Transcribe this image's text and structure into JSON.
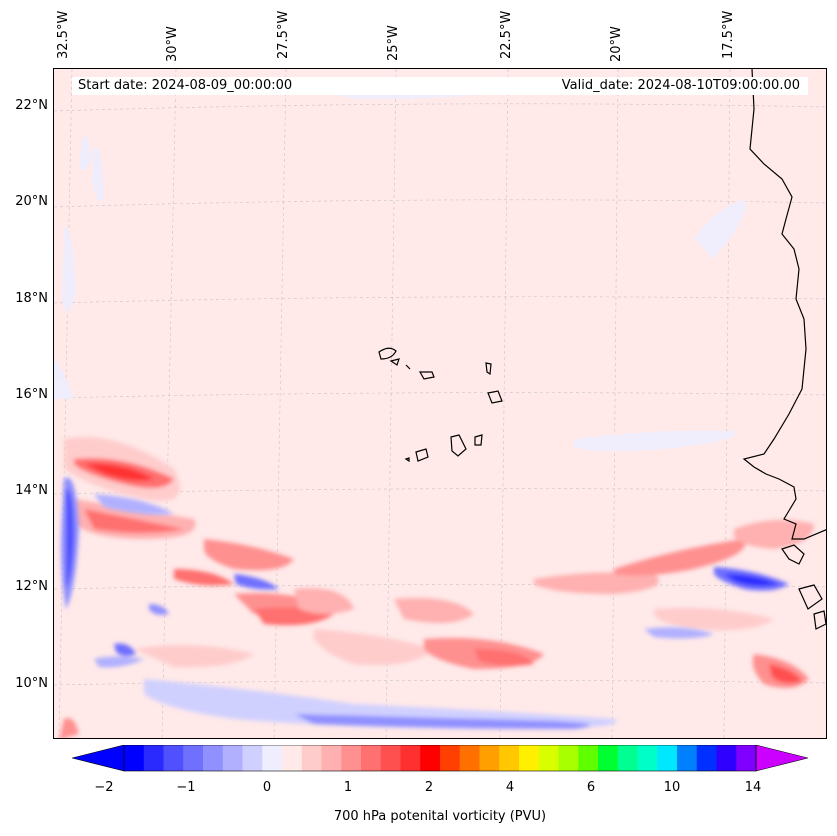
{
  "map": {
    "start_date": "Start date: 2024-08-09_00:00:00",
    "valid_date": "Valid_date: 2024-08-10T09:00:00.00",
    "longitude_labels": [
      "32.5°W",
      "30°W",
      "27.5°W",
      "25°W",
      "22.5°W",
      "20°W",
      "17.5°W"
    ],
    "latitude_labels": [
      "22°N",
      "20°N",
      "18°N",
      "16°N",
      "14°N",
      "12°N",
      "10°N"
    ],
    "background_color": "#ffe9e9"
  },
  "colorbar": {
    "label": "700 hPa potenital vorticity (PVU)",
    "tick_labels": [
      "−2",
      "−1",
      "0",
      "1",
      "2",
      "4",
      "6",
      "10",
      "14"
    ],
    "colors": [
      "#0000ff",
      "#2a2aff",
      "#5050ff",
      "#7070ff",
      "#9090ff",
      "#b0b0ff",
      "#d0d0ff",
      "#eeeeff",
      "#ffe9e9",
      "#ffcccc",
      "#ffb0b0",
      "#ff9090",
      "#ff7070",
      "#ff5050",
      "#ff3030",
      "#ff0000",
      "#ff4000",
      "#ff7000",
      "#ffa000",
      "#ffc800",
      "#fff000",
      "#d8ff00",
      "#a8ff00",
      "#60ff00",
      "#00ff30",
      "#00ff90",
      "#00ffc8",
      "#00e8ff",
      "#0080ff",
      "#0030ff",
      "#3000ff",
      "#8000ff"
    ],
    "under_color": "#0000ff",
    "over_color": "#cc00ff"
  }
}
